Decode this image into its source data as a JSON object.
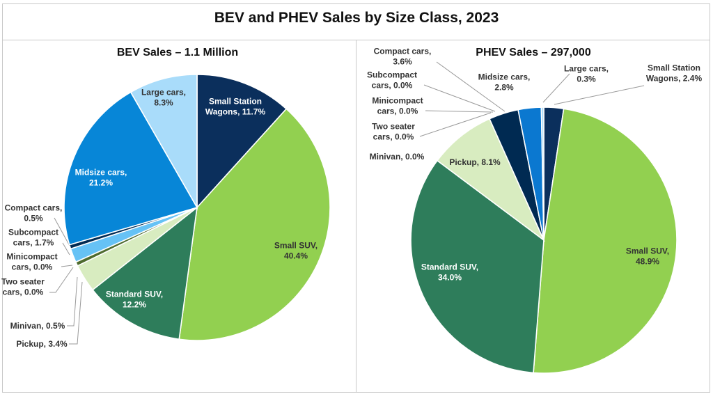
{
  "title": "BEV and PHEV Sales by Size Class, 2023",
  "colors": {
    "dark_navy": "#0b2f5c",
    "light_green": "#92d050",
    "dark_green": "#2e7d5b",
    "pale_green": "#d8ecc0",
    "olive": "#4e6b2e",
    "sky_blue": "#66c2f5",
    "navy": "#002a52",
    "blue": "#0786d7",
    "light_blue": "#a9dcfa",
    "royal_blue": "#0b78d0",
    "text": "#333333",
    "white_text": "#ffffff",
    "leader": "#999999"
  },
  "chart_data": [
    {
      "type": "pie",
      "title": "BEV Sales – 1.1 Million",
      "slices": [
        {
          "name": "Small Station Wagons",
          "value": 11.7,
          "label_lines": [
            "Small Station",
            "Wagons, 11.7%"
          ],
          "color": "#0b2f5c",
          "text_color": "#ffffff"
        },
        {
          "name": "Small SUV",
          "value": 40.4,
          "label_lines": [
            "Small SUV,",
            "40.4%"
          ],
          "color": "#92d050",
          "text_color": "#333333"
        },
        {
          "name": "Standard SUV",
          "value": 12.2,
          "label_lines": [
            "Standard SUV,",
            "12.2%"
          ],
          "color": "#2e7d5b",
          "text_color": "#ffffff"
        },
        {
          "name": "Pickup",
          "value": 3.4,
          "label_lines": [
            "Pickup, 3.4%"
          ],
          "color": "#d8ecc0",
          "text_color": "#333333"
        },
        {
          "name": "Minivan",
          "value": 0.5,
          "label_lines": [
            "Minivan, 0.5%"
          ],
          "color": "#4e6b2e",
          "text_color": "#333333"
        },
        {
          "name": "Two seater cars",
          "value": 0.0,
          "label_lines": [
            "Two seater",
            "cars, 0.0%"
          ],
          "color": "#0b2f5c",
          "text_color": "#333333"
        },
        {
          "name": "Minicompact cars",
          "value": 0.0,
          "label_lines": [
            "Minicompact",
            "cars, 0.0%"
          ],
          "color": "#0b2f5c",
          "text_color": "#333333"
        },
        {
          "name": "Subcompact cars",
          "value": 1.7,
          "label_lines": [
            "Subcompact",
            "cars, 1.7%"
          ],
          "color": "#66c2f5",
          "text_color": "#333333"
        },
        {
          "name": "Compact cars",
          "value": 0.5,
          "label_lines": [
            "Compact cars,",
            "0.5%"
          ],
          "color": "#002a52",
          "text_color": "#333333"
        },
        {
          "name": "Midsize cars",
          "value": 21.2,
          "label_lines": [
            "Midsize cars,",
            "21.2%"
          ],
          "color": "#0786d7",
          "text_color": "#ffffff"
        },
        {
          "name": "Large cars",
          "value": 8.3,
          "label_lines": [
            "Large cars,",
            "8.3%"
          ],
          "color": "#a9dcfa",
          "text_color": "#333333"
        }
      ]
    },
    {
      "type": "pie",
      "title": "PHEV Sales – 297,000",
      "slices": [
        {
          "name": "Small Station Wagons",
          "value": 2.4,
          "label_lines": [
            "Small Station",
            "Wagons, 2.4%"
          ],
          "color": "#0b2f5c",
          "text_color": "#333333"
        },
        {
          "name": "Small SUV",
          "value": 48.9,
          "label_lines": [
            "Small SUV,",
            "48.9%"
          ],
          "color": "#92d050",
          "text_color": "#333333"
        },
        {
          "name": "Standard SUV",
          "value": 34.0,
          "label_lines": [
            "Standard SUV,",
            "34.0%"
          ],
          "color": "#2e7d5b",
          "text_color": "#ffffff"
        },
        {
          "name": "Pickup",
          "value": 8.1,
          "label_lines": [
            "Pickup, 8.1%"
          ],
          "color": "#d8ecc0",
          "text_color": "#333333"
        },
        {
          "name": "Minivan",
          "value": 0.0,
          "label_lines": [
            "Minivan, 0.0%"
          ],
          "color": "#4e6b2e",
          "text_color": "#333333"
        },
        {
          "name": "Two seater cars",
          "value": 0.0,
          "label_lines": [
            "Two seater",
            "cars, 0.0%"
          ],
          "color": "#0b2f5c",
          "text_color": "#333333"
        },
        {
          "name": "Minicompact cars",
          "value": 0.0,
          "label_lines": [
            "Minicompact",
            "cars, 0.0%"
          ],
          "color": "#0b2f5c",
          "text_color": "#333333"
        },
        {
          "name": "Subcompact cars",
          "value": 0.0,
          "label_lines": [
            "Subcompact",
            "cars, 0.0%"
          ],
          "color": "#66c2f5",
          "text_color": "#333333"
        },
        {
          "name": "Compact cars",
          "value": 3.6,
          "label_lines": [
            "Compact cars,",
            "3.6%"
          ],
          "color": "#002a52",
          "text_color": "#333333"
        },
        {
          "name": "Midsize cars",
          "value": 2.8,
          "label_lines": [
            "Midsize cars,",
            "2.8%"
          ],
          "color": "#0b78d0",
          "text_color": "#333333"
        },
        {
          "name": "Large cars",
          "value": 0.3,
          "label_lines": [
            "Large cars,",
            "0.3%"
          ],
          "color": "#a9dcfa",
          "text_color": "#333333"
        }
      ]
    }
  ]
}
